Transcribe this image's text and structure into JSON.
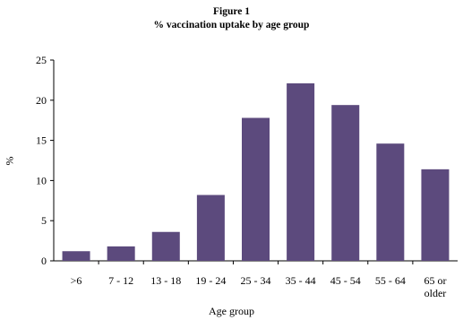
{
  "chart_data": {
    "type": "bar",
    "figure_label": "Figure 1",
    "title": "% vaccination uptake by age group",
    "xlabel": "Age group",
    "ylabel": "%",
    "categories": [
      ">6",
      "7 - 12",
      "13 - 18",
      "19 - 24",
      "25 - 34",
      "35 - 44",
      "45 - 54",
      "55 - 64",
      "65 or older"
    ],
    "values": [
      1.2,
      1.8,
      3.6,
      8.2,
      17.8,
      22.1,
      19.4,
      14.6,
      11.4
    ],
    "ylim": [
      0,
      25
    ],
    "yticks": [
      0,
      5,
      10,
      15,
      20,
      25
    ],
    "grid": false,
    "legend": "none",
    "bar_color": "#5c4a7d"
  }
}
